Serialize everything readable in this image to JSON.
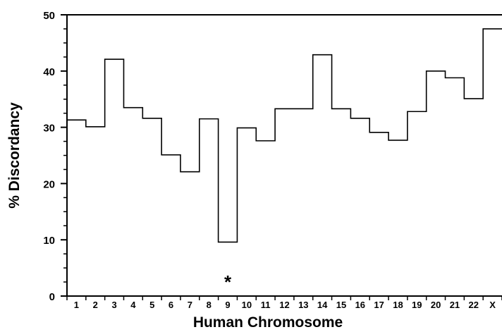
{
  "chart_data": {
    "type": "step",
    "xlabel": "Human Chromosome",
    "ylabel": "% Discordancy",
    "ylim": [
      0,
      50
    ],
    "y_ticks": [
      0,
      10,
      20,
      30,
      40,
      50
    ],
    "categories": [
      "1",
      "2",
      "3",
      "4",
      "5",
      "6",
      "7",
      "8",
      "9",
      "10",
      "11",
      "12",
      "13",
      "14",
      "15",
      "16",
      "17",
      "18",
      "19",
      "20",
      "21",
      "22",
      "X"
    ],
    "values": [
      31.3,
      30.1,
      42.1,
      33.5,
      31.6,
      25.1,
      22.1,
      31.5,
      9.6,
      29.9,
      27.6,
      33.3,
      33.3,
      42.9,
      33.3,
      31.6,
      29.1,
      27.7,
      32.8,
      40.0,
      38.8,
      35.1,
      47.5
    ],
    "annotations": [
      {
        "category": "9",
        "text": "*"
      }
    ],
    "grid": false,
    "legend": "none"
  }
}
